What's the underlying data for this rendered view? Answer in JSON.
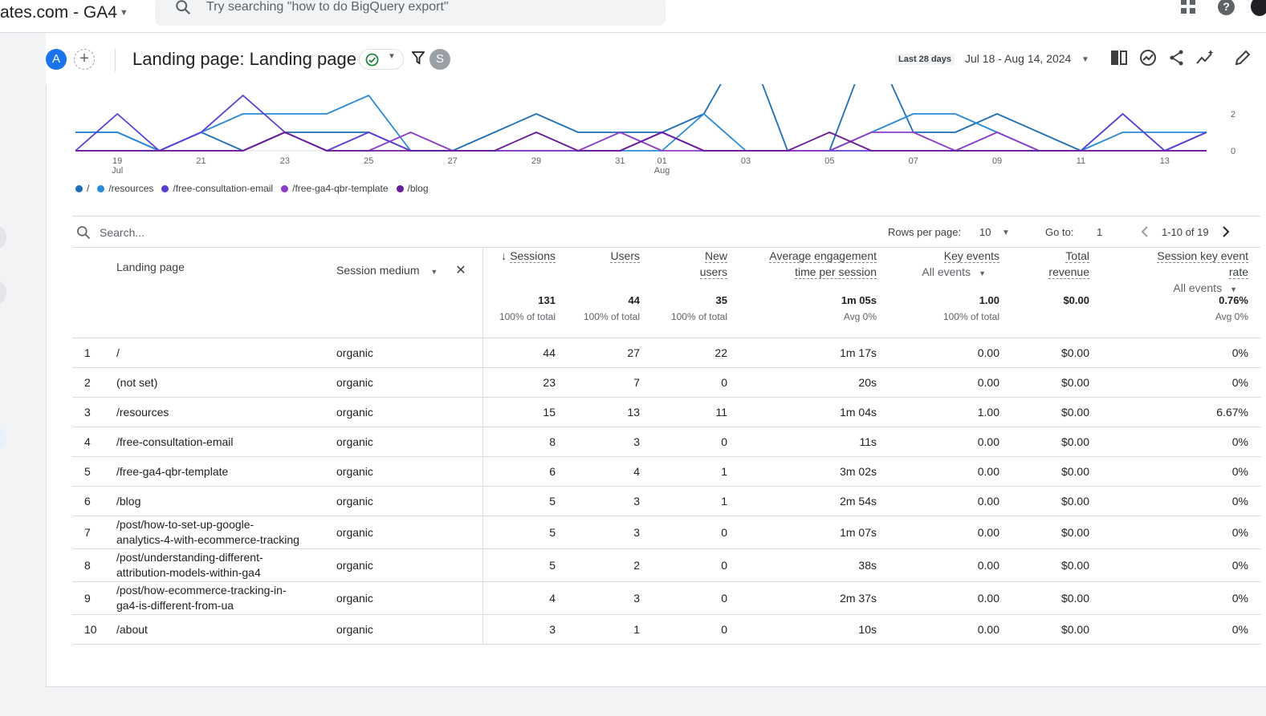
{
  "app": {
    "account_label": "ates.com - GA4",
    "search_placeholder": "Try searching \"how to do BigQuery export\""
  },
  "report": {
    "avatar_a": "A",
    "avatar_s": "S",
    "title": "Landing page: Landing page",
    "date_label": "Last 28 days",
    "date_range": "Jul 18 - Aug 14, 2024"
  },
  "chart_data": {
    "type": "line",
    "x": [
      "18",
      "19",
      "20",
      "21",
      "22",
      "23",
      "24",
      "25",
      "26",
      "27",
      "28",
      "29",
      "30",
      "31",
      "01",
      "02",
      "03",
      "04",
      "05",
      "06",
      "07",
      "08",
      "09",
      "10",
      "11",
      "12",
      "13",
      "14"
    ],
    "x_tick_labels": [
      {
        "x": "19",
        "label": "19",
        "sub": "Jul"
      },
      {
        "x": "21",
        "label": "21"
      },
      {
        "x": "23",
        "label": "23"
      },
      {
        "x": "25",
        "label": "25"
      },
      {
        "x": "27",
        "label": "27"
      },
      {
        "x": "29",
        "label": "29"
      },
      {
        "x": "31",
        "label": "31"
      },
      {
        "x": "01",
        "label": "01",
        "sub": "Aug"
      },
      {
        "x": "03",
        "label": "03"
      },
      {
        "x": "05",
        "label": "05"
      },
      {
        "x": "07",
        "label": "07"
      },
      {
        "x": "09",
        "label": "09"
      },
      {
        "x": "11",
        "label": "11"
      },
      {
        "x": "13",
        "label": "13"
      }
    ],
    "y_ticks": [
      "2",
      "0"
    ],
    "ylim": [
      0,
      4
    ],
    "series": [
      {
        "name": "/",
        "color": "#1f6fb5",
        "values": [
          1,
          1,
          0,
          1,
          0,
          1,
          1,
          1,
          0,
          0,
          1,
          2,
          1,
          1,
          1,
          2,
          6,
          0,
          0,
          6,
          1,
          1,
          2,
          1,
          0,
          2,
          0,
          1
        ]
      },
      {
        "name": "/resources",
        "color": "#2a8ad8",
        "values": [
          1,
          1,
          0,
          1,
          2,
          2,
          2,
          3,
          0,
          0,
          0,
          0,
          0,
          0,
          0,
          2,
          0,
          0,
          0,
          1,
          2,
          2,
          1,
          0,
          0,
          1,
          1,
          1
        ]
      },
      {
        "name": "/free-consultation-email",
        "color": "#5b3fd4",
        "values": [
          0,
          2,
          0,
          1,
          3,
          1,
          0,
          1,
          0,
          0,
          0,
          0,
          0,
          0,
          1,
          0,
          0,
          0,
          0,
          0,
          0,
          0,
          0,
          0,
          0,
          2,
          0,
          1
        ]
      },
      {
        "name": "/free-ga4-qbr-template",
        "color": "#8d3cc9",
        "values": [
          0,
          0,
          0,
          0,
          0,
          1,
          0,
          0,
          1,
          0,
          0,
          0,
          0,
          1,
          0,
          0,
          0,
          0,
          0,
          1,
          1,
          0,
          1,
          0,
          0,
          0,
          0,
          0
        ]
      },
      {
        "name": "/blog",
        "color": "#6a1b9a",
        "values": [
          0,
          0,
          0,
          0,
          0,
          1,
          0,
          0,
          0,
          0,
          0,
          1,
          0,
          0,
          1,
          0,
          0,
          0,
          1,
          0,
          0,
          0,
          0,
          0,
          0,
          0,
          0,
          0
        ]
      }
    ]
  },
  "legend": [
    {
      "label": "/",
      "color": "#1f6fb5"
    },
    {
      "label": "/resources",
      "color": "#2a8ad8"
    },
    {
      "label": "/free-consultation-email",
      "color": "#5b3fd4"
    },
    {
      "label": "/free-ga4-qbr-template",
      "color": "#8d3cc9"
    },
    {
      "label": "/blog",
      "color": "#6a1b9a"
    }
  ],
  "table": {
    "search_placeholder": "Search...",
    "rows_per_page_label": "Rows per page:",
    "rows_per_page": "10",
    "goto_label": "Go to:",
    "goto_value": "1",
    "range": "1-10 of 19",
    "headers": {
      "landing_page": "Landing page",
      "session_medium": "Session medium",
      "sessions": "Sessions",
      "users": "Users",
      "new_users_1": "New",
      "new_users_2": "users",
      "aet_1": "Average engagement",
      "aet_2": "time per session",
      "key_events": "Key events",
      "key_events_filter": "All events",
      "total_revenue_1": "Total",
      "total_revenue_2": "revenue",
      "skr_1": "Session key event",
      "skr_2": "rate",
      "skr_filter": "All events"
    },
    "totals": {
      "sessions": "131",
      "sessions_pct": "100% of total",
      "users": "44",
      "users_pct": "100% of total",
      "new_users": "35",
      "new_users_pct": "100% of total",
      "aet": "1m 05s",
      "aet_pct": "Avg 0%",
      "key_events": "1.00",
      "key_events_pct": "100% of total",
      "revenue": "$0.00",
      "skr": "0.76%",
      "skr_pct": "Avg 0%"
    },
    "rows": [
      {
        "n": "1",
        "lp1": "/",
        "lp2": "",
        "medium": "organic",
        "sessions": "44",
        "users": "27",
        "new_users": "22",
        "aet": "1m 17s",
        "ke": "0.00",
        "rev": "$0.00",
        "skr": "0%"
      },
      {
        "n": "2",
        "lp1": "(not set)",
        "lp2": "",
        "medium": "organic",
        "sessions": "23",
        "users": "7",
        "new_users": "0",
        "aet": "20s",
        "ke": "0.00",
        "rev": "$0.00",
        "skr": "0%"
      },
      {
        "n": "3",
        "lp1": "/resources",
        "lp2": "",
        "medium": "organic",
        "sessions": "15",
        "users": "13",
        "new_users": "11",
        "aet": "1m 04s",
        "ke": "1.00",
        "rev": "$0.00",
        "skr": "6.67%"
      },
      {
        "n": "4",
        "lp1": "/free-consultation-email",
        "lp2": "",
        "medium": "organic",
        "sessions": "8",
        "users": "3",
        "new_users": "0",
        "aet": "11s",
        "ke": "0.00",
        "rev": "$0.00",
        "skr": "0%"
      },
      {
        "n": "5",
        "lp1": "/free-ga4-qbr-template",
        "lp2": "",
        "medium": "organic",
        "sessions": "6",
        "users": "4",
        "new_users": "1",
        "aet": "3m 02s",
        "ke": "0.00",
        "rev": "$0.00",
        "skr": "0%"
      },
      {
        "n": "6",
        "lp1": "/blog",
        "lp2": "",
        "medium": "organic",
        "sessions": "5",
        "users": "3",
        "new_users": "1",
        "aet": "2m 54s",
        "ke": "0.00",
        "rev": "$0.00",
        "skr": "0%"
      },
      {
        "n": "7",
        "lp1": "/post/how-to-set-up-google-",
        "lp2": "analytics-4-with-ecommerce-tracking",
        "medium": "organic",
        "sessions": "5",
        "users": "3",
        "new_users": "0",
        "aet": "1m 07s",
        "ke": "0.00",
        "rev": "$0.00",
        "skr": "0%"
      },
      {
        "n": "8",
        "lp1": "/post/understanding-different-",
        "lp2": "attribution-models-within-ga4",
        "medium": "organic",
        "sessions": "5",
        "users": "2",
        "new_users": "0",
        "aet": "38s",
        "ke": "0.00",
        "rev": "$0.00",
        "skr": "0%"
      },
      {
        "n": "9",
        "lp1": "/post/how-ecommerce-tracking-in-",
        "lp2": "ga4-is-different-from-ua",
        "medium": "organic",
        "sessions": "4",
        "users": "3",
        "new_users": "0",
        "aet": "2m 37s",
        "ke": "0.00",
        "rev": "$0.00",
        "skr": "0%"
      },
      {
        "n": "10",
        "lp1": "/about",
        "lp2": "",
        "medium": "organic",
        "sessions": "3",
        "users": "1",
        "new_users": "0",
        "aet": "10s",
        "ke": "0.00",
        "rev": "$0.00",
        "skr": "0%"
      }
    ]
  }
}
